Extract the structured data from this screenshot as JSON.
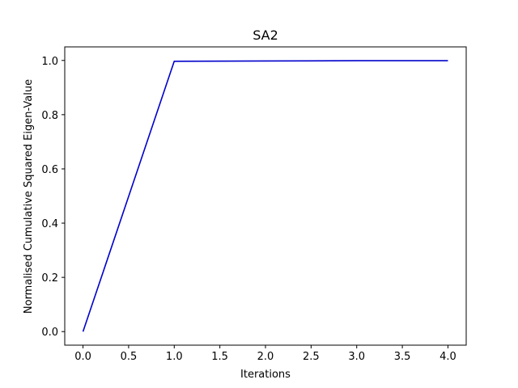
{
  "chart_data": {
    "type": "line",
    "title": "SA2",
    "xlabel": "Iterations",
    "ylabel": "Normalised Cumulative Squared Eigen-Value",
    "x": [
      0,
      1,
      2,
      3,
      4
    ],
    "series": [
      {
        "values": [
          0.0,
          0.997,
          0.998,
          0.999,
          0.999
        ],
        "color": "#0000cc"
      }
    ],
    "xlim": [
      -0.2,
      4.2
    ],
    "ylim": [
      -0.05,
      1.05
    ],
    "xticks": [
      0,
      0.5,
      1,
      1.5,
      2,
      2.5,
      3,
      3.5,
      4
    ],
    "xtick_labels": [
      "0.0",
      "0.5",
      "1.0",
      "1.5",
      "2.0",
      "2.5",
      "3.0",
      "3.5",
      "4.0"
    ],
    "yticks": [
      0,
      0.2,
      0.4,
      0.6,
      0.8,
      1.0
    ],
    "ytick_labels": [
      "0.0",
      "0.2",
      "0.4",
      "0.6",
      "0.8",
      "1.0"
    ],
    "grid": false,
    "legend": "none"
  }
}
